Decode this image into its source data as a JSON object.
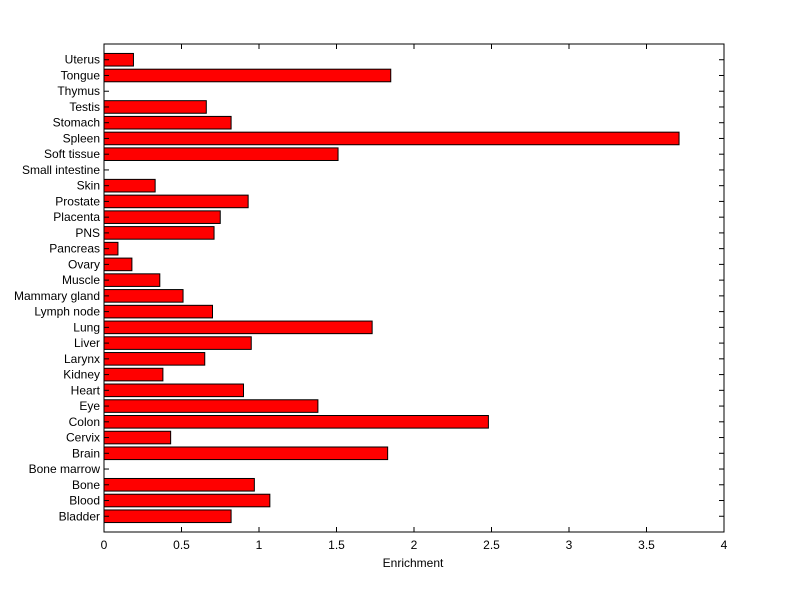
{
  "chart_data": {
    "type": "bar",
    "orientation": "horizontal",
    "title": "",
    "xlabel": "Enrichment",
    "ylabel": "",
    "xlim": [
      0,
      4
    ],
    "xticks": [
      "0",
      "0.5",
      "1",
      "1.5",
      "2",
      "2.5",
      "3",
      "3.5",
      "4"
    ],
    "grid": false,
    "legend": "none",
    "bar_color": "#ff0000",
    "categories": [
      "Bladder",
      "Blood",
      "Bone",
      "Bone marrow",
      "Brain",
      "Cervix",
      "Colon",
      "Eye",
      "Heart",
      "Kidney",
      "Larynx",
      "Liver",
      "Lung",
      "Lymph node",
      "Mammary gland",
      "Muscle",
      "Ovary",
      "Pancreas",
      "PNS",
      "Placenta",
      "Prostate",
      "Skin",
      "Small intestine",
      "Soft tissue",
      "Spleen",
      "Stomach",
      "Testis",
      "Thymus",
      "Tongue",
      "Uterus"
    ],
    "values": [
      0.82,
      1.07,
      0.97,
      0,
      1.83,
      0.43,
      2.48,
      1.38,
      0.9,
      0.38,
      0.65,
      0.95,
      1.73,
      0.7,
      0.51,
      0.36,
      0.18,
      0.09,
      0.71,
      0.75,
      0.93,
      0.33,
      0,
      1.51,
      3.71,
      0.82,
      0.66,
      0,
      1.85,
      0.19
    ]
  }
}
